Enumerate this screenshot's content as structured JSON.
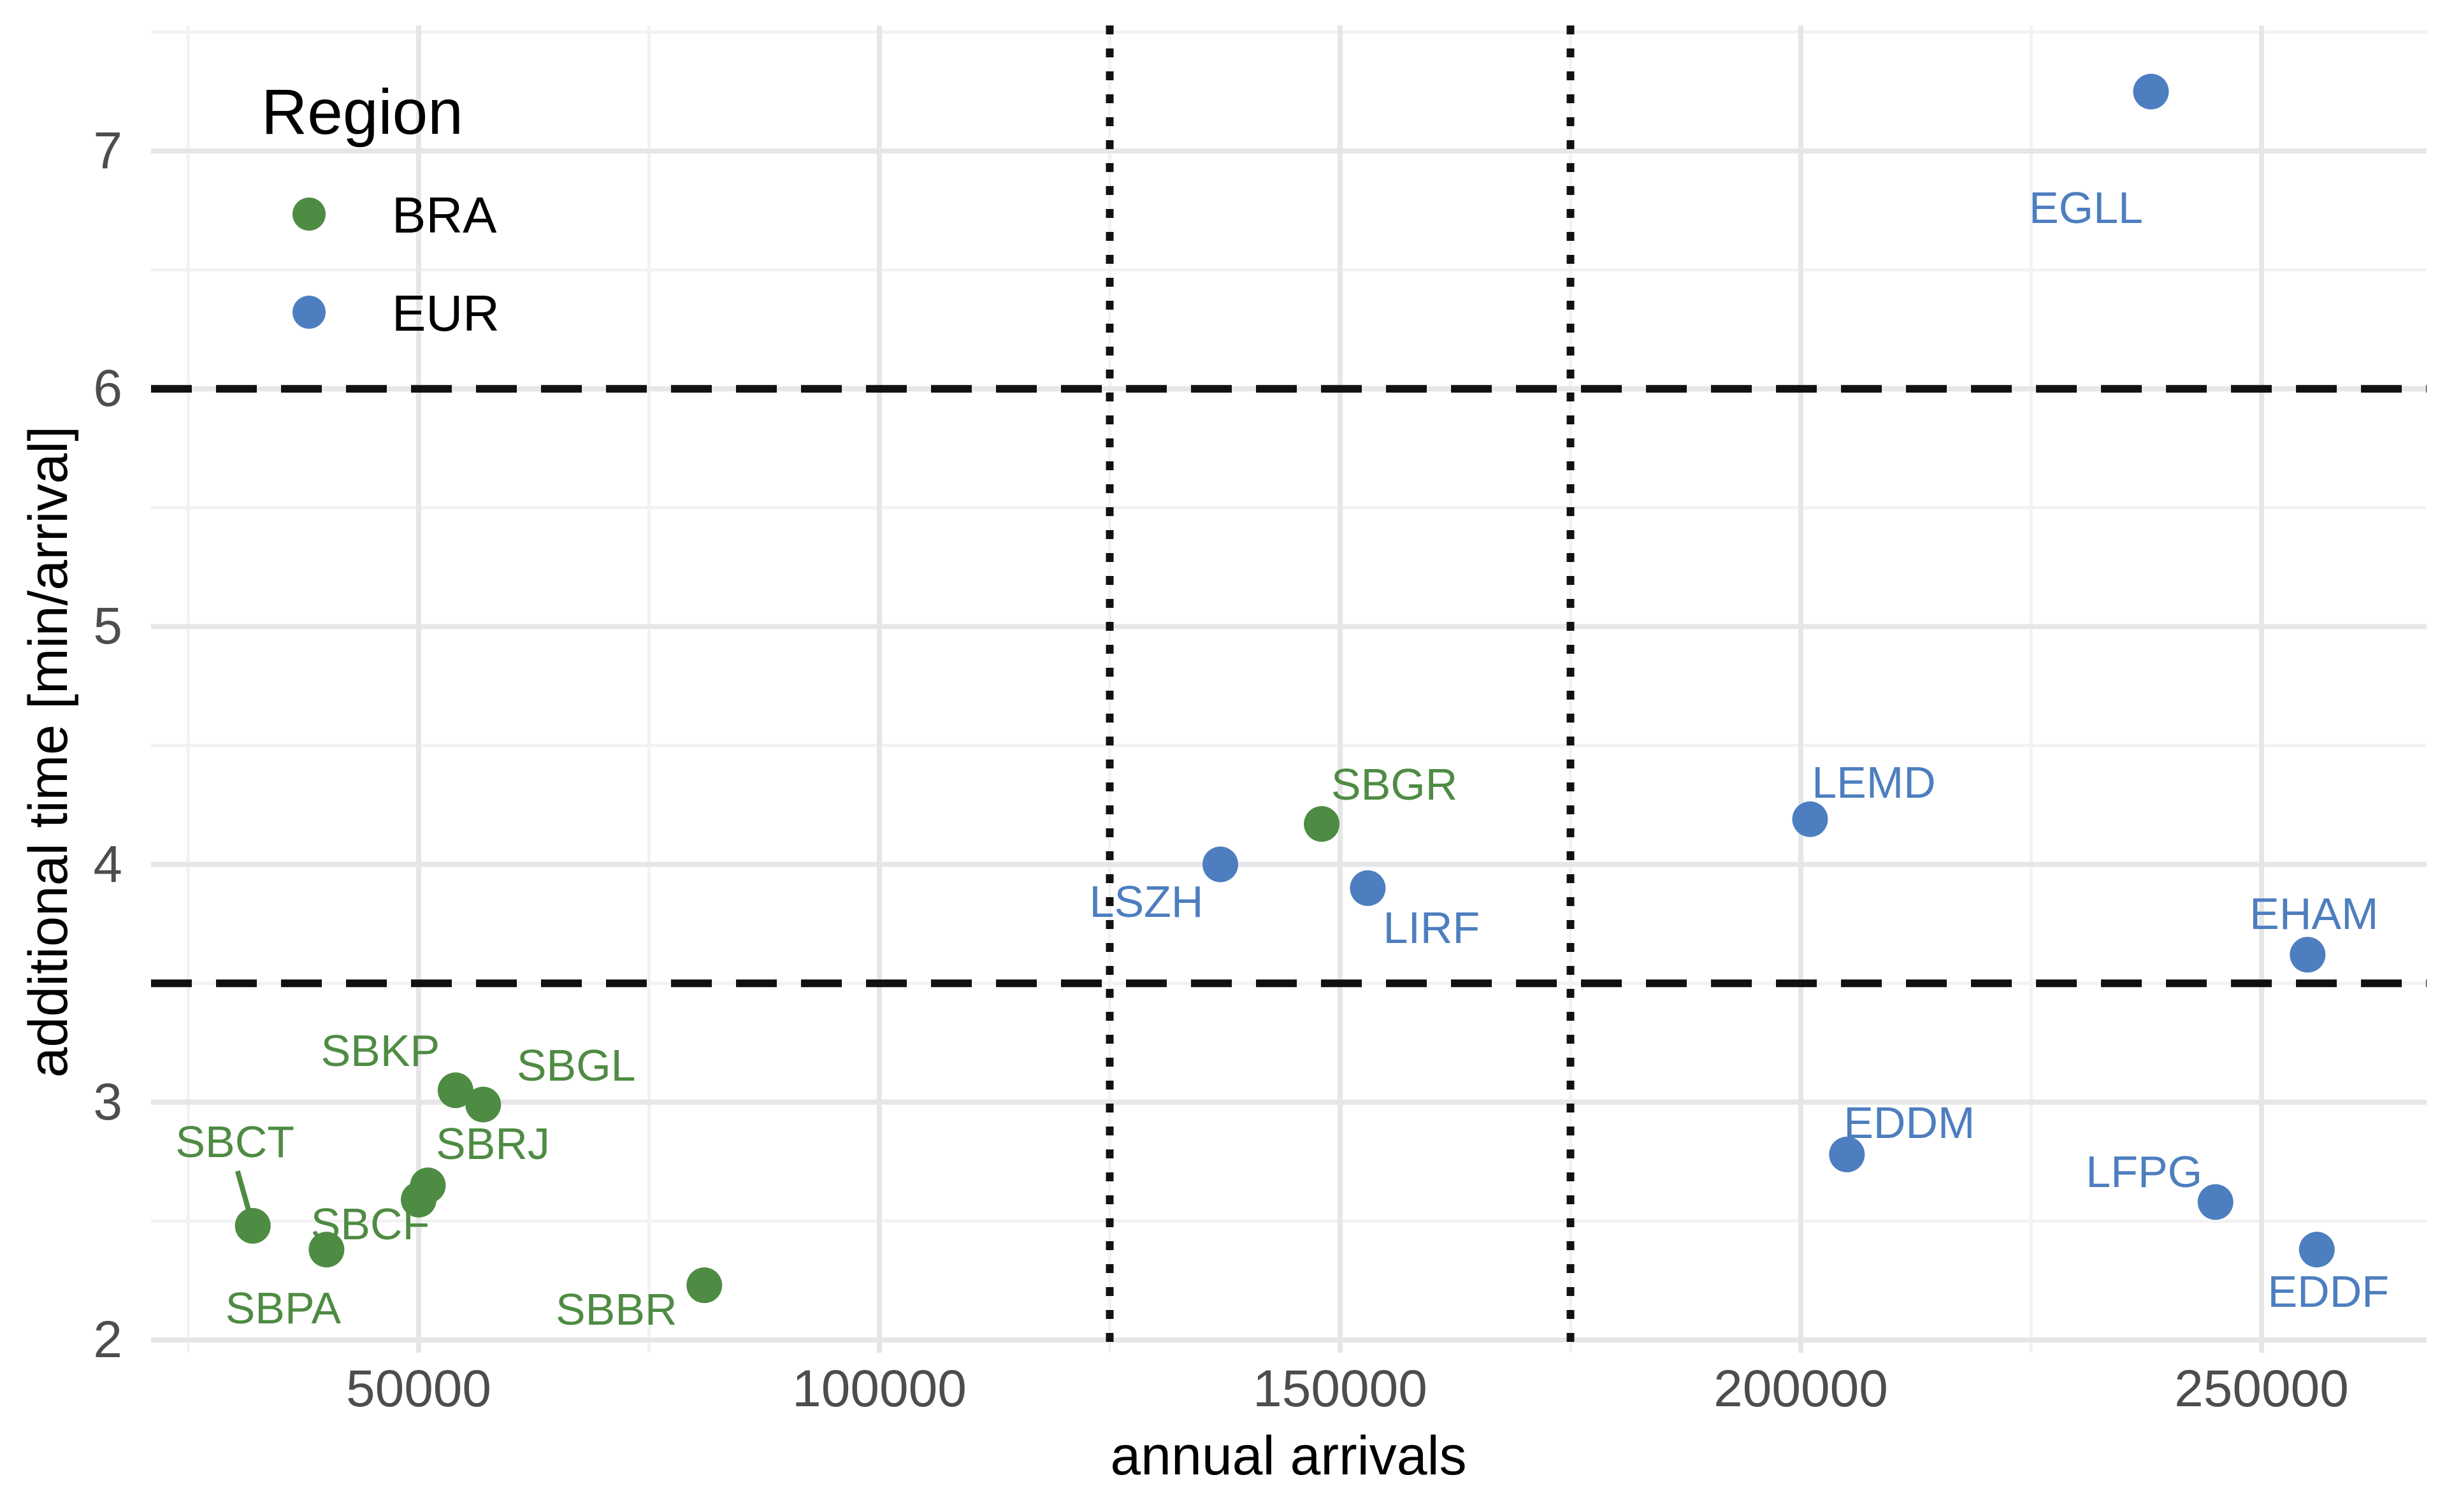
{
  "chart_data": {
    "type": "scatter",
    "title": "",
    "xlabel": "annual arrivals",
    "ylabel": "additional time [min/arrival]",
    "xlim": [
      21000,
      268000
    ],
    "ylim": [
      1.95,
      7.55
    ],
    "xticks": [
      50000,
      100000,
      150000,
      200000,
      250000
    ],
    "yticks": [
      2,
      3,
      4,
      5,
      6,
      7
    ],
    "x_minor_gridlines": [
      25000,
      75000,
      125000,
      175000,
      225000
    ],
    "y_minor_gridlines": [
      2.5,
      3.5,
      4.5,
      5.5,
      6.5,
      7.5
    ],
    "grid": true,
    "legend": {
      "title": "Region",
      "position": "inside-top-left",
      "entries": [
        {
          "label": "BRA",
          "color": "#4e8b43"
        },
        {
          "label": "EUR",
          "color": "#4d7ebf"
        }
      ]
    },
    "reference_lines": {
      "dashed_horizontal_y": [
        6,
        3.5
      ],
      "dotted_vertical_x": [
        125000,
        175000
      ],
      "color": "#111111"
    },
    "series": [
      {
        "name": "BRA",
        "color": "#4e8b43",
        "points": [
          {
            "label": "SBCT",
            "x": 32000,
            "y": 2.48,
            "dx": -28,
            "dy": -132,
            "leader": [
              [
                -24,
                -86
              ],
              [
                -7,
                -26
              ]
            ]
          },
          {
            "label": "SBPA",
            "x": 40000,
            "y": 2.38,
            "dx": -68,
            "dy": 92
          },
          {
            "label": "SBCF",
            "x": 50000,
            "y": 2.59,
            "dx": -76,
            "dy": 38
          },
          {
            "label": "SBRJ",
            "x": 51000,
            "y": 2.65,
            "dx": 102,
            "dy": -65
          },
          {
            "label": "SBKP",
            "x": 54000,
            "y": 3.05,
            "dx": -118,
            "dy": -62
          },
          {
            "label": "SBGL",
            "x": 57000,
            "y": 2.99,
            "dx": 146,
            "dy": -62
          },
          {
            "label": "SBBR",
            "x": 81000,
            "y": 2.23,
            "dx": -138,
            "dy": 38
          },
          {
            "label": "SBGR",
            "x": 148000,
            "y": 4.17,
            "dx": 114,
            "dy": -62
          }
        ]
      },
      {
        "name": "EUR",
        "color": "#4d7ebf",
        "points": [
          {
            "label": "LSZH",
            "x": 137000,
            "y": 4.0,
            "dx": -116,
            "dy": 58
          },
          {
            "label": "LIRF",
            "x": 153000,
            "y": 3.9,
            "dx": 100,
            "dy": 62
          },
          {
            "label": "LEMD",
            "x": 201000,
            "y": 4.19,
            "dx": 100,
            "dy": -58
          },
          {
            "label": "EDDM",
            "x": 205000,
            "y": 2.78,
            "dx": 98,
            "dy": -50
          },
          {
            "label": "LFPG",
            "x": 245000,
            "y": 2.58,
            "dx": -112,
            "dy": -48
          },
          {
            "label": "EDDF",
            "x": 256000,
            "y": 2.38,
            "dx": 18,
            "dy": 66
          },
          {
            "label": "EHAM",
            "x": 255000,
            "y": 3.62,
            "dx": 10,
            "dy": -64
          },
          {
            "label": "EGLL",
            "x": 238000,
            "y": 7.25,
            "dx": -102,
            "dy": 182
          }
        ]
      }
    ]
  },
  "colors": {
    "background": "#ffffff",
    "grid_major": "#e6e6e6",
    "grid_minor": "#f2f2f2",
    "tick_label": "#4d4d4d",
    "axis_title": "#000000",
    "reference_line": "#111111"
  }
}
